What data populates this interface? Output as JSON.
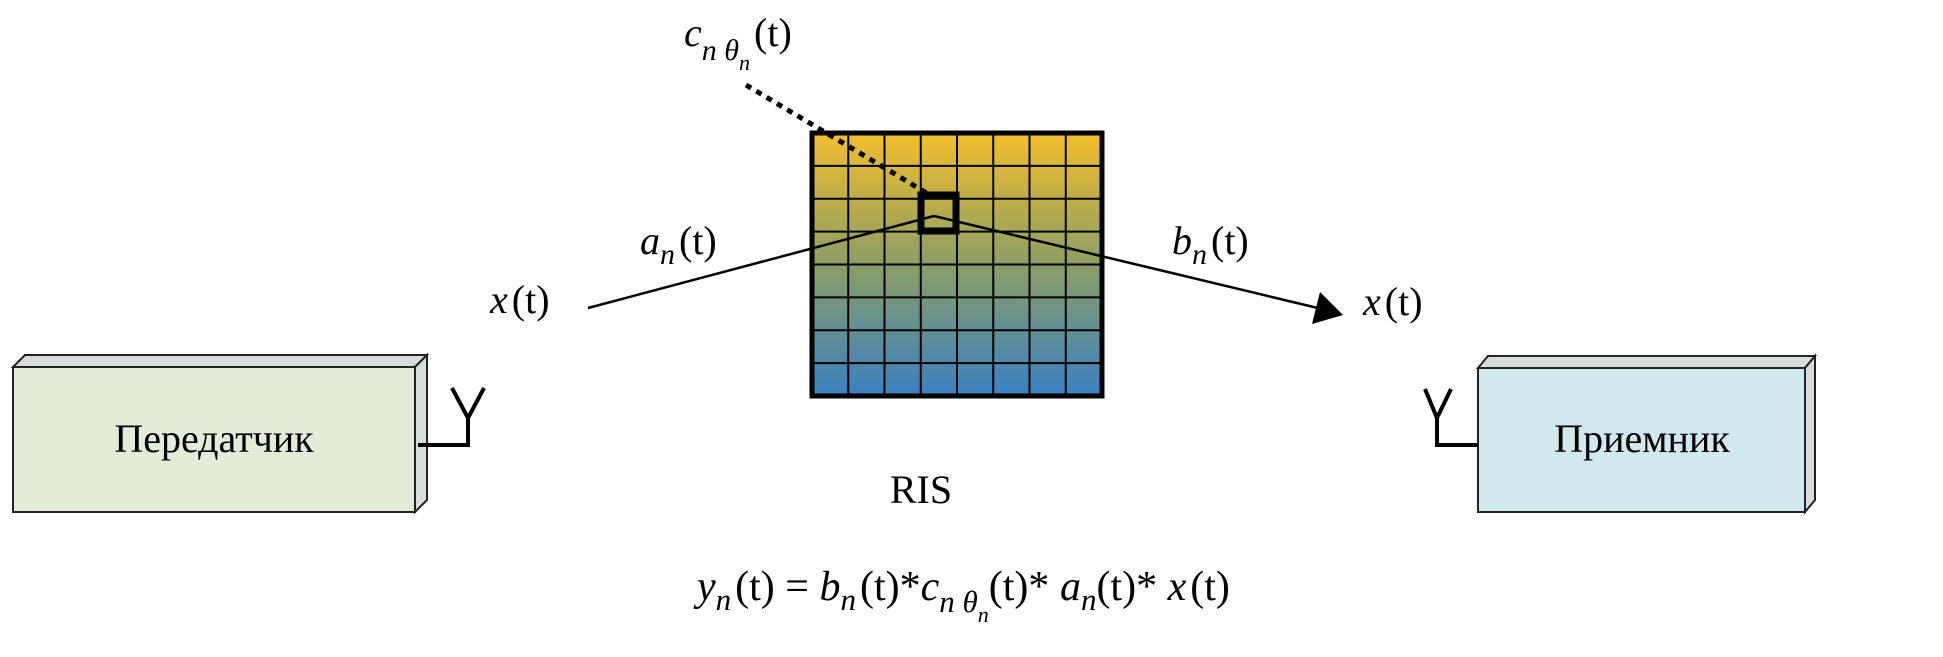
{
  "transmitter": {
    "label": "Передатчик",
    "fill": "#e2ecd8"
  },
  "receiver": {
    "label": "Приемник",
    "fill": "#d1e9ed"
  },
  "ris": {
    "label": "RIS",
    "rows": 8,
    "cols": 8,
    "gradient_top": "#f2be2d",
    "gradient_mid": "#8c9e66",
    "gradient_bottom": "#3a80c2"
  },
  "labels": {
    "x_in": {
      "base": "x",
      "arg": "(t)"
    },
    "x_out": {
      "base": "x",
      "arg": "(t)"
    },
    "a": {
      "base": "a",
      "sub": "n",
      "arg": "(t)"
    },
    "b": {
      "base": "b",
      "sub": "n",
      "arg": "(t)"
    },
    "c": {
      "base": "c",
      "sub": "n θ",
      "subsub": "n",
      "arg": "(t)"
    }
  },
  "equation": {
    "y": "y",
    "y_sub": "n",
    "y_arg": "(t) = ",
    "b": "b",
    "b_sub": "n",
    "b_arg": "(t)*",
    "c": "c",
    "c_sub": "n θ",
    "c_subsub": "n",
    "c_arg": "(t)* ",
    "a": "a",
    "a_sub": "n",
    "a_arg": "(t)* ",
    "x": "x",
    "x_arg": "(t)"
  }
}
